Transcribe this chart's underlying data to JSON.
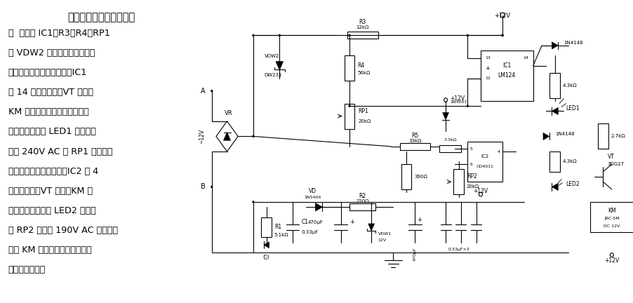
{
  "title_line1": "交流电源过、欠压保护电",
  "title_line2": "路",
  "body_text": [
    "路  电路由 IC1、R3、R4、RP1",
    "及 VDW2 组成过压保护电路。",
    "当交流电压超过某设定值，IC1",
    "脚 14 输出高电平，VT 导通，",
    "KM 吸合，其触点切断用电负载",
    "供电。过压指示 LED1 亮。过压",
    "门限 240V AC 由 RP1 调节。当",
    "输入电压低于设定值时，IC2 脚 4",
    "输出高电平，VT 导通，KM 吸",
    "合，同时欠压指示 LED2 亮。调",
    "节 RP2 可设置 190V AC 欠压点。",
    "图中 KM 的触点电流容量可根据",
    "负载情况选择。"
  ],
  "bg_color": "#ffffff",
  "text_color": "#000000",
  "circuit": {
    "background": "#ffffff",
    "line_color": "#000000",
    "component_color": "#000000"
  }
}
